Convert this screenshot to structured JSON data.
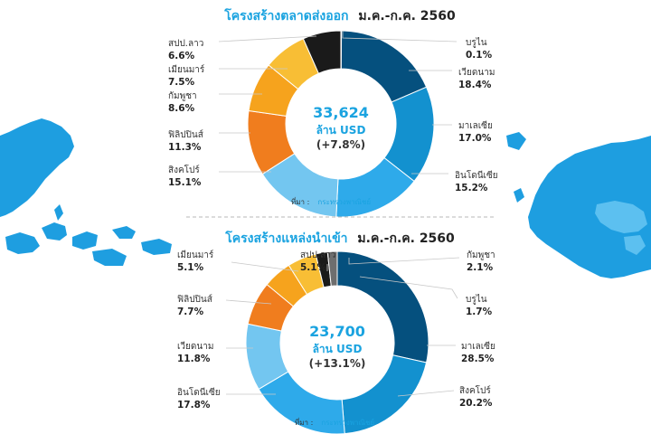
{
  "colors": {
    "accent": "#1aa3e0",
    "map_primary": "#1e9ee0",
    "map_secondary": "#5cc0f0"
  },
  "chart_data": [
    {
      "type": "pie",
      "title": "โครงสร้างตลาดส่งออก",
      "period": "ม.ค.-ก.ค. 2560",
      "center": {
        "value": "33,624",
        "unit": "ล้าน USD",
        "change": "(+7.8%)"
      },
      "source_label": "ที่มา :",
      "source": "กระทรวงพาณิชย์",
      "slices": [
        {
          "name": "บรูไน",
          "value": 0.1,
          "label": "0.1%",
          "color": "#7a7a7a"
        },
        {
          "name": "เวียดนาม",
          "value": 18.4,
          "label": "18.4%",
          "color": "#05507e"
        },
        {
          "name": "มาเลเซีย",
          "value": 17.0,
          "label": "17.0%",
          "color": "#1391cf"
        },
        {
          "name": "อินโดนีเซีย",
          "value": 15.2,
          "label": "15.2%",
          "color": "#2eaaea"
        },
        {
          "name": "สิงคโปร์",
          "value": 15.1,
          "label": "15.1%",
          "color": "#73c6f0"
        },
        {
          "name": "ฟิลิปปินส์",
          "value": 11.3,
          "label": "11.3%",
          "color": "#f07d1e"
        },
        {
          "name": "กัมพูชา",
          "value": 8.6,
          "label": "8.6%",
          "color": "#f6a31d"
        },
        {
          "name": "เมียนมาร์",
          "value": 7.5,
          "label": "7.5%",
          "color": "#f8be35"
        },
        {
          "name": "สปป.ลาว",
          "value": 6.6,
          "label": "6.6%",
          "color": "#1a1a1a"
        }
      ]
    },
    {
      "type": "pie",
      "title": "โครงสร้างแหล่งนำเข้า",
      "period": "ม.ค.-ก.ค. 2560",
      "center": {
        "value": "23,700",
        "unit": "ล้าน USD",
        "change": "(+13.1%)"
      },
      "source_label": "ที่มา :",
      "source": "กระทรวงพาณิชย์",
      "slices": [
        {
          "name": "มาเลเซีย",
          "value": 28.5,
          "label": "28.5%",
          "color": "#05507e"
        },
        {
          "name": "สิงคโปร์",
          "value": 20.2,
          "label": "20.2%",
          "color": "#1391cf"
        },
        {
          "name": "อินโดนีเซีย",
          "value": 17.8,
          "label": "17.8%",
          "color": "#2eaaea"
        },
        {
          "name": "เวียดนาม",
          "value": 11.8,
          "label": "11.8%",
          "color": "#73c6f0"
        },
        {
          "name": "ฟิลิปปินส์",
          "value": 7.7,
          "label": "7.7%",
          "color": "#f07d1e"
        },
        {
          "name": "เมียนมาร์",
          "value": 5.1,
          "label": "5.1%",
          "color": "#f6a31d"
        },
        {
          "name": "สปป.ลาว",
          "value": 5.1,
          "label": "5.1%",
          "color": "#f8be35"
        },
        {
          "name": "กัมพูชา",
          "value": 2.1,
          "label": "2.1%",
          "color": "#1a1a1a"
        },
        {
          "name": "บรูไน",
          "value": 1.7,
          "label": "1.7%",
          "color": "#6e6e6e"
        }
      ]
    }
  ]
}
